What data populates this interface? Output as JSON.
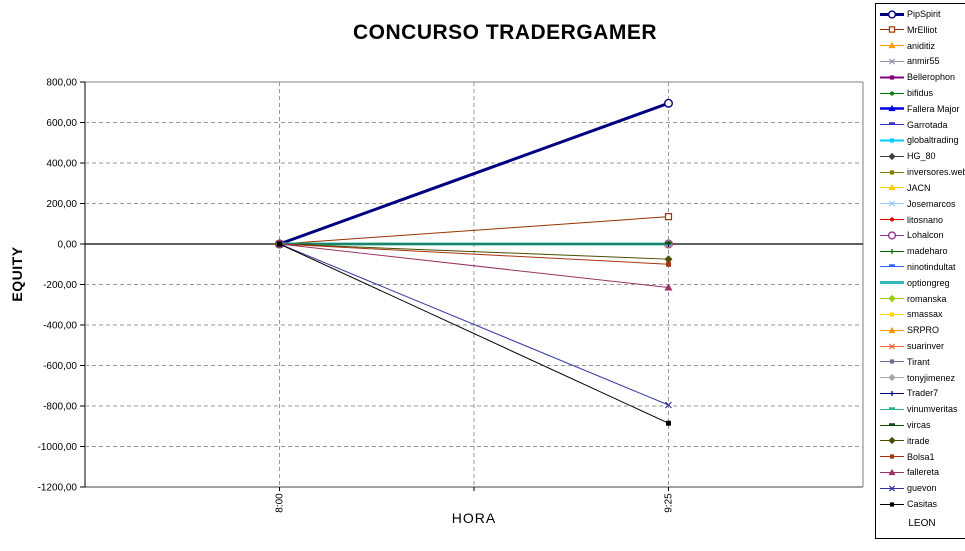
{
  "title": "CONCURSO TRADERGAMER",
  "chart_data": {
    "type": "line",
    "title": "CONCURSO TRADERGAMER",
    "xlabel": "HORA",
    "ylabel": "EQUITY",
    "categories": [
      "8:00",
      "9:25"
    ],
    "ylim": [
      -1200,
      800
    ],
    "ytick_step": 200,
    "yticks": [
      {
        "value": 800,
        "label": "800,00"
      },
      {
        "value": 600,
        "label": "600,00"
      },
      {
        "value": 400,
        "label": "400,00"
      },
      {
        "value": 200,
        "label": "200,00"
      },
      {
        "value": 0,
        "label": "0,00"
      },
      {
        "value": -200,
        "label": "-200,00"
      },
      {
        "value": -400,
        "label": "-400,00"
      },
      {
        "value": -600,
        "label": "-600,00"
      },
      {
        "value": -800,
        "label": "-800,00"
      },
      {
        "value": -1000,
        "label": "-1000,00"
      },
      {
        "value": -1200,
        "label": "-1200,00"
      }
    ],
    "grid": "dashed",
    "legend_position": "right",
    "colors": {
      "plot_border": "#808080",
      "gridline": "#999999",
      "axis": "#000000",
      "background": "#ffffff"
    },
    "series": [
      {
        "name": "PipSpirit",
        "color": "#000080",
        "marker": "circle-open",
        "line_width": 3,
        "values": [
          0,
          695
        ]
      },
      {
        "name": "MrElliot",
        "color": "#993300",
        "marker": "square-open",
        "line_width": 1,
        "values": [
          0,
          135
        ]
      },
      {
        "name": "aniditiz",
        "color": "#FF9900",
        "marker": "triangle",
        "line_width": 1,
        "values": [
          0,
          0
        ]
      },
      {
        "name": "anmir55",
        "color": "#9494B0",
        "marker": "x",
        "line_width": 1,
        "values": [
          0,
          0
        ]
      },
      {
        "name": "Bellerophon",
        "color": "#800080",
        "marker": "square",
        "line_width": 2,
        "values": [
          0,
          0
        ]
      },
      {
        "name": "bifidus",
        "color": "#008000",
        "marker": "circle",
        "line_width": 1,
        "values": [
          0,
          0
        ]
      },
      {
        "name": "Fallera Major",
        "color": "#0000E6",
        "marker": "triangle",
        "line_width": 2.5,
        "values": [
          0,
          0
        ]
      },
      {
        "name": "Garrotada",
        "color": "#3333CC",
        "marker": "dash",
        "line_width": 1,
        "values": [
          0,
          0
        ]
      },
      {
        "name": "globaltrading",
        "color": "#00CCFF",
        "marker": "square",
        "line_width": 2,
        "values": [
          0,
          0
        ]
      },
      {
        "name": "HG_80",
        "color": "#404040",
        "marker": "diamond",
        "line_width": 1,
        "values": [
          0,
          0
        ]
      },
      {
        "name": "inversores.webgs",
        "color": "#808000",
        "marker": "square",
        "line_width": 1,
        "values": [
          0,
          0
        ]
      },
      {
        "name": "JACN",
        "color": "#FFCC00",
        "marker": "triangle",
        "line_width": 1,
        "values": [
          0,
          0
        ]
      },
      {
        "name": "Josemarcos",
        "color": "#99CCFF",
        "marker": "x",
        "line_width": 1,
        "values": [
          0,
          0
        ]
      },
      {
        "name": "litosnano",
        "color": "#E60000",
        "marker": "circle",
        "line_width": 1,
        "values": [
          0,
          0
        ]
      },
      {
        "name": "Lohalcon",
        "color": "#993399",
        "marker": "circle-open",
        "line_width": 1,
        "values": [
          0,
          0
        ]
      },
      {
        "name": "madeharo",
        "color": "#006600",
        "marker": "plus",
        "line_width": 1,
        "values": [
          0,
          0
        ]
      },
      {
        "name": "ninotindultat",
        "color": "#3366FF",
        "marker": "dash",
        "line_width": 1,
        "values": [
          0,
          0
        ]
      },
      {
        "name": "optiongreg",
        "color": "#33B8B8",
        "marker": "none",
        "line_width": 3,
        "values": [
          0,
          0
        ]
      },
      {
        "name": "romanska",
        "color": "#99CC00",
        "marker": "diamond",
        "line_width": 1,
        "values": [
          0,
          0
        ]
      },
      {
        "name": "smassax",
        "color": "#FFD500",
        "marker": "square",
        "line_width": 1,
        "values": [
          0,
          0
        ]
      },
      {
        "name": "SRPRO",
        "color": "#FF9900",
        "marker": "triangle",
        "line_width": 1,
        "values": [
          0,
          0
        ]
      },
      {
        "name": "suarinver",
        "color": "#FF6633",
        "marker": "x",
        "line_width": 1,
        "values": [
          0,
          0
        ]
      },
      {
        "name": "Tirant",
        "color": "#70708F",
        "marker": "square",
        "line_width": 1,
        "values": [
          0,
          0
        ]
      },
      {
        "name": "tonyjimenez",
        "color": "#A6A6A6",
        "marker": "diamond",
        "line_width": 1,
        "values": [
          0,
          0
        ]
      },
      {
        "name": "Trader7",
        "color": "#000080",
        "marker": "plus",
        "line_width": 1,
        "values": [
          0,
          0
        ]
      },
      {
        "name": "vinumveritas",
        "color": "#2FB08A",
        "marker": "dash",
        "line_width": 1,
        "values": [
          0,
          0
        ]
      },
      {
        "name": "vircas",
        "color": "#0D4D0D",
        "marker": "dash",
        "line_width": 1,
        "values": [
          0,
          0
        ]
      },
      {
        "name": "itrade",
        "color": "#4D4D00",
        "marker": "diamond",
        "line_width": 1,
        "values": [
          0,
          -75
        ]
      },
      {
        "name": "Bolsa1",
        "color": "#AA3311",
        "marker": "square",
        "line_width": 1,
        "values": [
          0,
          -100
        ]
      },
      {
        "name": "fallereta",
        "color": "#993366",
        "marker": "triangle",
        "line_width": 1,
        "values": [
          0,
          -215
        ]
      },
      {
        "name": "guevon",
        "color": "#3333A0",
        "marker": "x",
        "line_width": 1,
        "values": [
          0,
          -795
        ]
      },
      {
        "name": "Casitas",
        "color": "#000000",
        "marker": "square",
        "line_width": 1,
        "values": [
          0,
          -885
        ]
      }
    ],
    "legend_footer": "LEON"
  }
}
